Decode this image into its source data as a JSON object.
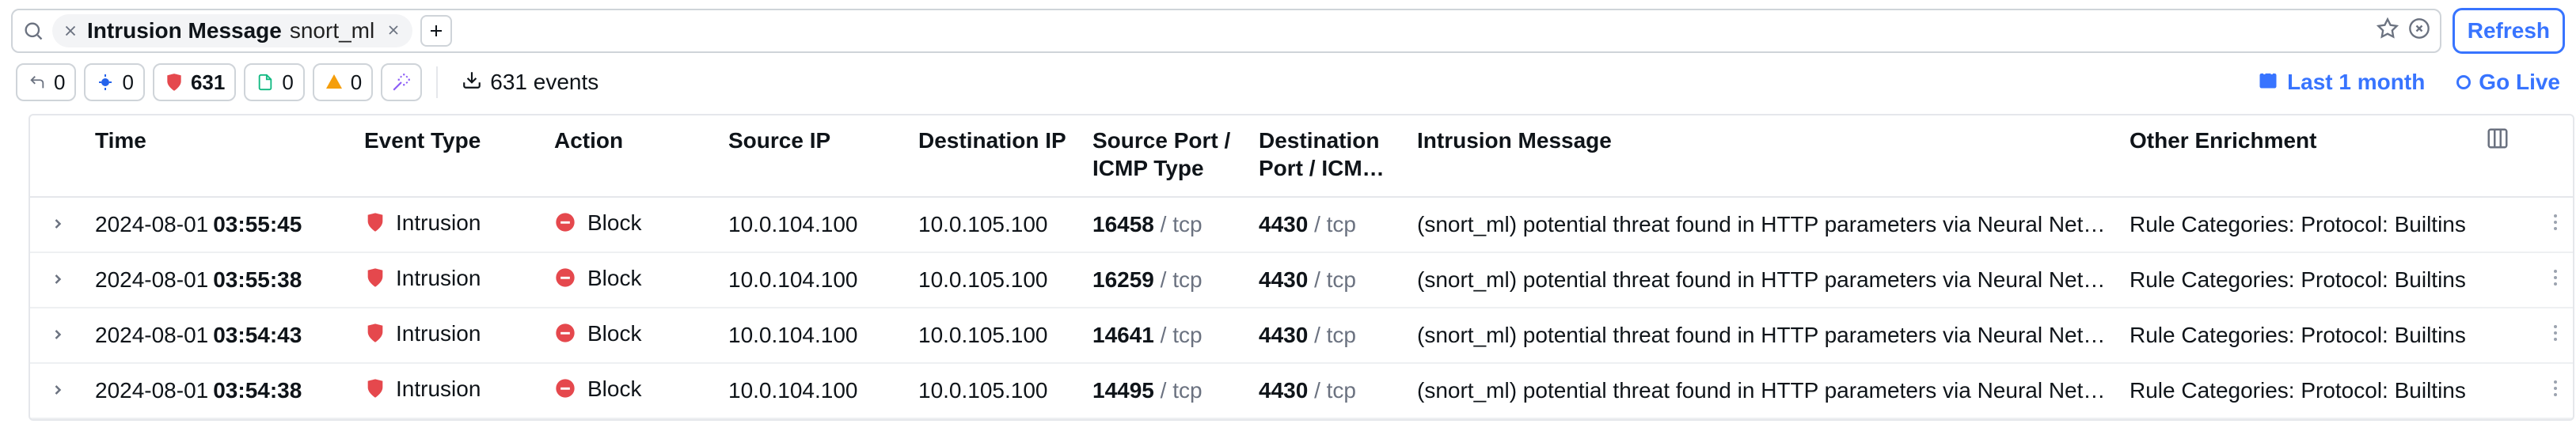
{
  "colors": {
    "accent_blue": "#3874ff",
    "danger_red": "#e5484d",
    "orange": "#f59e0b",
    "purple": "#8b5cf6",
    "info_blue": "#2563eb",
    "green": "#10b981",
    "text": "#0f1419",
    "muted": "#6b7280",
    "border": "#cfd4d9",
    "row_border": "#eef0f2",
    "background": "#ffffff",
    "pill_bg": "#f3f4f6"
  },
  "search": {
    "filter_field": "Intrusion Message",
    "filter_value": "snort_ml",
    "placeholder": ""
  },
  "toolbar": {
    "chips": {
      "undo": {
        "count": "0"
      },
      "malware": {
        "count": "0",
        "color": "#2563eb"
      },
      "intrusion": {
        "count": "631",
        "color": "#e5484d"
      },
      "file": {
        "count": "0",
        "color": "#10b981"
      },
      "other": {
        "count": "0",
        "color": "#f59e0b"
      }
    },
    "export_label": "631 events",
    "time_range": "Last 1 month",
    "go_live": "Go Live",
    "refresh_label": "Refresh"
  },
  "table": {
    "columns": {
      "time": "Time",
      "event_type": "Event Type",
      "action": "Action",
      "source_ip": "Source IP",
      "dest_ip": "Destination IP",
      "source_port": "Source Port / ICMP Type",
      "dest_port": "Destination Port / ICM…",
      "intrusion_message": "Intrusion Message",
      "other_enrichment": "Other Enrichment"
    },
    "rows": [
      {
        "date": "2024-08-01",
        "time": "03:55:45",
        "event_type": "Intrusion",
        "action": "Block",
        "source_ip": "10.0.104.100",
        "dest_ip": "10.0.105.100",
        "source_port": "16458",
        "source_proto": "tcp",
        "dest_port": "4430",
        "dest_proto": "tcp",
        "message": "(snort_ml) potential threat found in HTTP parameters via Neural Net…",
        "enrichment": "Rule Categories: Protocol: Builtins"
      },
      {
        "date": "2024-08-01",
        "time": "03:55:38",
        "event_type": "Intrusion",
        "action": "Block",
        "source_ip": "10.0.104.100",
        "dest_ip": "10.0.105.100",
        "source_port": "16259",
        "source_proto": "tcp",
        "dest_port": "4430",
        "dest_proto": "tcp",
        "message": "(snort_ml) potential threat found in HTTP parameters via Neural Net…",
        "enrichment": "Rule Categories: Protocol: Builtins"
      },
      {
        "date": "2024-08-01",
        "time": "03:54:43",
        "event_type": "Intrusion",
        "action": "Block",
        "source_ip": "10.0.104.100",
        "dest_ip": "10.0.105.100",
        "source_port": "14641",
        "source_proto": "tcp",
        "dest_port": "4430",
        "dest_proto": "tcp",
        "message": "(snort_ml) potential threat found in HTTP parameters via Neural Net…",
        "enrichment": "Rule Categories: Protocol: Builtins"
      },
      {
        "date": "2024-08-01",
        "time": "03:54:38",
        "event_type": "Intrusion",
        "action": "Block",
        "source_ip": "10.0.104.100",
        "dest_ip": "10.0.105.100",
        "source_port": "14495",
        "source_proto": "tcp",
        "dest_port": "4430",
        "dest_proto": "tcp",
        "message": "(snort_ml) potential threat found in HTTP parameters via Neural Net…",
        "enrichment": "Rule Categories: Protocol: Builtins"
      }
    ]
  }
}
